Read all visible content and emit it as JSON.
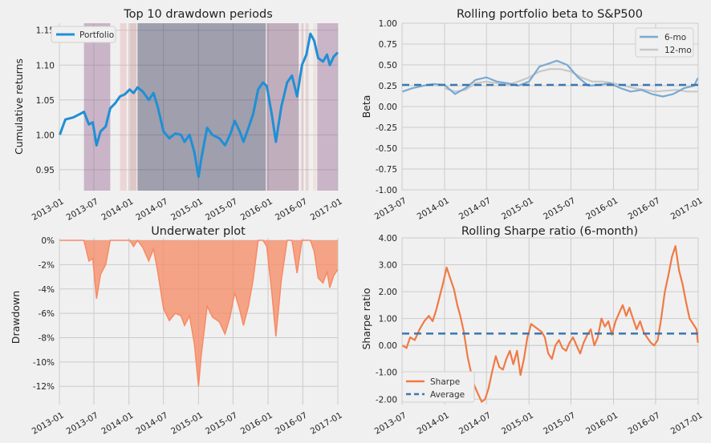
{
  "chart_data": [
    {
      "type": "line",
      "id": "cumret",
      "title": "Top 10 drawdown periods",
      "xlabel": "",
      "ylabel": "Cumulative returns",
      "xlim": [
        "2013-01",
        "2017-01"
      ],
      "ylim": [
        0.92,
        1.16
      ],
      "xticks": [
        "2013-01",
        "2013-07",
        "2014-01",
        "2014-07",
        "2015-01",
        "2015-07",
        "2016-01",
        "2016-07",
        "2017-01"
      ],
      "yticks": [
        0.95,
        1.0,
        1.05,
        1.1,
        1.15
      ],
      "ytick_labels": [
        "0.95",
        "1.00",
        "1.05",
        "1.10",
        "1.15"
      ],
      "legend": {
        "placement": "top-left",
        "entries": [
          "Portfolio"
        ]
      },
      "drawdown_periods": [
        {
          "start": "2013-05-10",
          "end": "2013-09-25"
        },
        {
          "start": "2013-11-15",
          "end": "2013-12-20"
        },
        {
          "start": "2014-01-05",
          "end": "2014-02-10"
        },
        {
          "start": "2014-02-15",
          "end": "2015-12-20"
        },
        {
          "start": "2015-12-25",
          "end": "2016-06-10"
        },
        {
          "start": "2016-06-20",
          "end": "2016-07-05"
        },
        {
          "start": "2016-07-15",
          "end": "2016-08-01"
        },
        {
          "start": "2016-08-25",
          "end": "2016-09-10"
        },
        {
          "start": "2016-09-15",
          "end": "2016-12-31"
        }
      ],
      "series": [
        {
          "name": "Portfolio",
          "color": "#1f8fd6",
          "x": [
            "2013-01-03",
            "2013-02-01",
            "2013-03-15",
            "2013-04-20",
            "2013-05-10",
            "2013-06-05",
            "2013-06-25",
            "2013-07-15",
            "2013-08-05",
            "2013-09-01",
            "2013-09-25",
            "2013-10-20",
            "2013-11-15",
            "2013-12-10",
            "2014-01-05",
            "2014-01-25",
            "2014-02-15",
            "2014-03-15",
            "2014-04-15",
            "2014-05-10",
            "2014-06-01",
            "2014-07-01",
            "2014-08-01",
            "2014-09-01",
            "2014-10-01",
            "2014-10-20",
            "2014-11-15",
            "2014-12-10",
            "2015-01-01",
            "2015-01-15",
            "2015-02-15",
            "2015-03-15",
            "2015-04-20",
            "2015-05-20",
            "2015-06-15",
            "2015-07-10",
            "2015-08-05",
            "2015-08-25",
            "2015-09-20",
            "2015-10-15",
            "2015-11-10",
            "2015-12-05",
            "2015-12-25",
            "2016-01-20",
            "2016-02-11",
            "2016-03-10",
            "2016-04-10",
            "2016-05-05",
            "2016-06-01",
            "2016-06-27",
            "2016-07-20",
            "2016-08-10",
            "2016-08-30",
            "2016-09-20",
            "2016-10-15",
            "2016-11-05",
            "2016-11-20",
            "2016-12-10",
            "2016-12-31"
          ],
          "y": [
            1.0,
            1.022,
            1.025,
            1.03,
            1.033,
            1.015,
            1.018,
            0.985,
            1.005,
            1.012,
            1.038,
            1.045,
            1.055,
            1.058,
            1.065,
            1.06,
            1.068,
            1.062,
            1.05,
            1.06,
            1.04,
            1.005,
            0.995,
            1.002,
            1.0,
            0.99,
            1.0,
            0.975,
            0.94,
            0.965,
            1.01,
            1.0,
            0.995,
            0.985,
            1.0,
            1.02,
            1.005,
            0.99,
            1.01,
            1.03,
            1.065,
            1.075,
            1.07,
            1.03,
            0.99,
            1.04,
            1.075,
            1.085,
            1.055,
            1.1,
            1.115,
            1.145,
            1.135,
            1.11,
            1.105,
            1.115,
            1.1,
            1.112,
            1.118
          ]
        }
      ]
    },
    {
      "type": "line",
      "id": "beta",
      "title": "Rolling portfolio beta to S&P500",
      "xlabel": "",
      "ylabel": "Beta",
      "xlim": [
        "2013-07",
        "2017-01"
      ],
      "ylim": [
        -1.0,
        1.0
      ],
      "xticks": [
        "2013-07",
        "2014-01",
        "2014-07",
        "2015-01",
        "2015-07",
        "2016-01",
        "2016-07",
        "2017-01"
      ],
      "yticks": [
        -1.0,
        -0.75,
        -0.5,
        -0.25,
        0.0,
        0.25,
        0.5,
        0.75,
        1.0
      ],
      "ytick_labels": [
        "-1.00",
        "-0.75",
        "-0.50",
        "-0.25",
        "0.00",
        "0.25",
        "0.50",
        "0.75",
        "1.00"
      ],
      "legend": {
        "placement": "top-right",
        "entries": [
          "6-mo",
          "12-mo"
        ]
      },
      "mean": 0.26,
      "series": [
        {
          "name": "6-mo",
          "color": "#7aaad2",
          "x": [
            "2013-07-03",
            "2013-08-15",
            "2013-10-01",
            "2013-11-15",
            "2014-01-01",
            "2014-02-15",
            "2014-04-01",
            "2014-05-15",
            "2014-07-01",
            "2014-08-15",
            "2014-10-01",
            "2014-11-15",
            "2015-01-01",
            "2015-02-15",
            "2015-04-01",
            "2015-05-01",
            "2015-06-15",
            "2015-08-01",
            "2015-09-15",
            "2015-11-01",
            "2015-12-15",
            "2016-02-01",
            "2016-03-15",
            "2016-05-01",
            "2016-06-15",
            "2016-08-01",
            "2016-09-15",
            "2016-11-01",
            "2016-12-15",
            "2016-12-30"
          ],
          "y": [
            0.18,
            0.22,
            0.25,
            0.27,
            0.26,
            0.15,
            0.22,
            0.32,
            0.35,
            0.3,
            0.28,
            0.25,
            0.3,
            0.48,
            0.52,
            0.55,
            0.5,
            0.35,
            0.25,
            0.26,
            0.28,
            0.22,
            0.18,
            0.2,
            0.15,
            0.12,
            0.15,
            0.22,
            0.25,
            0.34
          ]
        },
        {
          "name": "12-mo",
          "color": "#c8c8c8",
          "x": [
            "2014-01-01",
            "2014-02-15",
            "2014-04-01",
            "2014-05-15",
            "2014-07-01",
            "2014-08-15",
            "2014-10-01",
            "2014-11-15",
            "2015-01-01",
            "2015-02-15",
            "2015-04-01",
            "2015-05-15",
            "2015-07-01",
            "2015-08-15",
            "2015-10-01",
            "2015-11-15",
            "2016-01-01",
            "2016-02-15",
            "2016-04-01",
            "2016-05-15",
            "2016-07-01",
            "2016-08-15",
            "2016-10-01",
            "2016-11-15",
            "2016-12-30"
          ],
          "y": [
            0.22,
            0.18,
            0.2,
            0.28,
            0.3,
            0.28,
            0.26,
            0.3,
            0.35,
            0.42,
            0.45,
            0.45,
            0.42,
            0.35,
            0.3,
            0.3,
            0.28,
            0.25,
            0.22,
            0.2,
            0.18,
            0.19,
            0.2,
            0.18,
            0.18
          ]
        }
      ]
    },
    {
      "type": "area",
      "id": "underwater",
      "title": "Underwater plot",
      "xlabel": "",
      "ylabel": "Drawdown",
      "xlim": [
        "2013-01",
        "2017-01"
      ],
      "ylim": [
        -13.5,
        0.2
      ],
      "xticks": [
        "2013-01",
        "2013-07",
        "2014-01",
        "2014-07",
        "2015-01",
        "2015-07",
        "2016-01",
        "2016-07",
        "2017-01"
      ],
      "yticks": [
        0,
        -2,
        -4,
        -6,
        -8,
        -10,
        -12
      ],
      "ytick_labels": [
        "0%",
        "-2%",
        "-4%",
        "-6%",
        "-8%",
        "-10%",
        "-12%"
      ],
      "series": [
        {
          "name": "",
          "color": "#f78a63",
          "x": [
            "2013-01-03",
            "2013-03-01",
            "2013-05-10",
            "2013-06-05",
            "2013-06-25",
            "2013-07-15",
            "2013-08-05",
            "2013-09-01",
            "2013-09-25",
            "2013-10-20",
            "2013-11-15",
            "2013-12-10",
            "2014-01-05",
            "2014-01-25",
            "2014-02-15",
            "2014-03-15",
            "2014-04-15",
            "2014-05-10",
            "2014-06-01",
            "2014-07-01",
            "2014-08-01",
            "2014-09-01",
            "2014-10-01",
            "2014-10-20",
            "2014-11-15",
            "2014-12-10",
            "2015-01-01",
            "2015-01-15",
            "2015-02-15",
            "2015-03-15",
            "2015-04-20",
            "2015-05-20",
            "2015-06-15",
            "2015-07-10",
            "2015-08-05",
            "2015-08-25",
            "2015-09-20",
            "2015-10-15",
            "2015-11-10",
            "2015-12-05",
            "2015-12-25",
            "2016-01-20",
            "2016-02-11",
            "2016-03-10",
            "2016-04-10",
            "2016-05-05",
            "2016-06-01",
            "2016-06-27",
            "2016-07-20",
            "2016-08-10",
            "2016-08-30",
            "2016-09-20",
            "2016-10-15",
            "2016-11-05",
            "2016-11-20",
            "2016-12-10",
            "2016-12-31"
          ],
          "y": [
            0,
            0,
            0,
            -1.7,
            -1.5,
            -4.8,
            -2.8,
            -2.0,
            0,
            0,
            0,
            0,
            0,
            -0.5,
            0,
            -0.6,
            -1.7,
            -0.7,
            -2.6,
            -5.6,
            -6.6,
            -6.0,
            -6.2,
            -7.0,
            -6.2,
            -8.5,
            -12.0,
            -9.5,
            -5.4,
            -6.3,
            -6.7,
            -7.7,
            -6.3,
            -4.3,
            -5.7,
            -7.0,
            -5.4,
            -3.2,
            0,
            0,
            -0.5,
            -4.2,
            -7.9,
            -3.3,
            0,
            0,
            -2.7,
            0,
            0,
            0,
            -0.9,
            -3.1,
            -3.5,
            -2.6,
            -3.9,
            -2.9,
            -2.4
          ]
        }
      ]
    },
    {
      "type": "line",
      "id": "sharpe",
      "title": "Rolling Sharpe ratio (6-month)",
      "xlabel": "",
      "ylabel": "Sharpe ratio",
      "xlim": [
        "2013-07",
        "2017-01"
      ],
      "ylim": [
        -2.2,
        4.0
      ],
      "xticks": [
        "2013-07",
        "2014-01",
        "2014-07",
        "2015-01",
        "2015-07",
        "2016-01",
        "2016-07",
        "2017-01"
      ],
      "yticks": [
        -2,
        -1,
        0,
        1,
        2,
        3,
        4
      ],
      "ytick_labels": [
        "-2.00",
        "-1.00",
        "0.00",
        "1.00",
        "2.00",
        "3.00",
        "4.00"
      ],
      "legend": {
        "placement": "bottom-left",
        "entries": [
          "Sharpe",
          "Average"
        ]
      },
      "mean": 0.44,
      "series": [
        {
          "name": "Sharpe",
          "color": "#f07a45",
          "x": [
            "2013-07-03",
            "2013-07-20",
            "2013-08-05",
            "2013-08-25",
            "2013-09-15",
            "2013-10-05",
            "2013-10-25",
            "2013-11-10",
            "2013-11-25",
            "2013-12-10",
            "2013-12-25",
            "2014-01-10",
            "2014-01-25",
            "2014-02-10",
            "2014-02-25",
            "2014-03-10",
            "2014-03-25",
            "2014-04-10",
            "2014-04-25",
            "2014-05-10",
            "2014-05-25",
            "2014-06-10",
            "2014-06-25",
            "2014-07-10",
            "2014-07-25",
            "2014-08-10",
            "2014-08-25",
            "2014-09-10",
            "2014-09-25",
            "2014-10-10",
            "2014-10-25",
            "2014-11-10",
            "2014-11-25",
            "2014-12-10",
            "2014-12-25",
            "2015-01-10",
            "2015-01-25",
            "2015-02-10",
            "2015-02-25",
            "2015-03-10",
            "2015-03-25",
            "2015-04-10",
            "2015-04-25",
            "2015-05-10",
            "2015-05-25",
            "2015-06-10",
            "2015-06-25",
            "2015-07-10",
            "2015-07-25",
            "2015-08-10",
            "2015-08-25",
            "2015-09-10",
            "2015-09-25",
            "2015-10-10",
            "2015-10-25",
            "2015-11-10",
            "2015-11-25",
            "2015-12-10",
            "2015-12-25",
            "2016-01-10",
            "2016-01-25",
            "2016-02-10",
            "2016-02-25",
            "2016-03-10",
            "2016-03-25",
            "2016-04-10",
            "2016-04-25",
            "2016-05-10",
            "2016-05-25",
            "2016-06-10",
            "2016-06-25",
            "2016-07-10",
            "2016-07-25",
            "2016-08-10",
            "2016-08-25",
            "2016-09-10",
            "2016-09-25",
            "2016-10-10",
            "2016-10-25",
            "2016-11-10",
            "2016-11-25",
            "2016-12-10",
            "2016-12-25",
            "2016-12-31"
          ],
          "y": [
            0.0,
            -0.1,
            0.3,
            0.2,
            0.6,
            0.9,
            1.1,
            0.9,
            1.3,
            1.8,
            2.3,
            2.9,
            2.5,
            2.1,
            1.5,
            1.1,
            0.5,
            -0.4,
            -1.0,
            -1.5,
            -1.8,
            -2.1,
            -2.0,
            -1.6,
            -1.0,
            -0.4,
            -0.8,
            -0.9,
            -0.5,
            -0.2,
            -0.7,
            -0.2,
            -1.1,
            -0.5,
            0.3,
            0.8,
            0.7,
            0.6,
            0.5,
            0.3,
            -0.3,
            -0.5,
            0.0,
            0.2,
            -0.1,
            -0.2,
            0.1,
            0.3,
            0.0,
            -0.3,
            0.1,
            0.4,
            0.6,
            0.0,
            0.3,
            1.0,
            0.7,
            0.9,
            0.4,
            0.9,
            1.2,
            1.5,
            1.1,
            1.4,
            1.0,
            0.6,
            0.9,
            0.5,
            0.3,
            0.1,
            0.0,
            0.2,
            1.0,
            2.0,
            2.6,
            3.3,
            3.7,
            2.8,
            2.3,
            1.6,
            1.0,
            0.8,
            0.6,
            0.1
          ]
        },
        {
          "name": "Average",
          "color": "#3b77b0",
          "values": [
            0.44
          ]
        }
      ]
    }
  ]
}
